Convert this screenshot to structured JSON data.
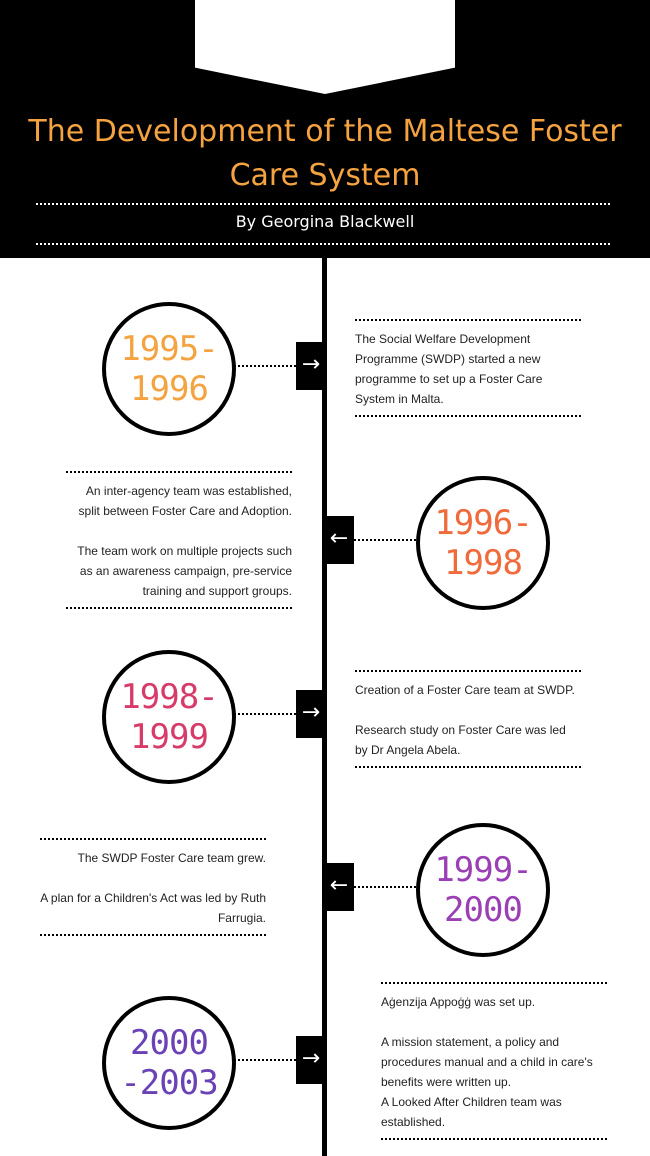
{
  "header": {
    "title": "The Development of the Maltese Foster Care System",
    "byline": "By Georgina Blackwell"
  },
  "colors": {
    "title": "#f4a340",
    "y1995": "#f4a340",
    "y1996": "#f06a3b",
    "y1998": "#d63b69",
    "y1999": "#9b3fb5",
    "y2000": "#6a42b5"
  },
  "icons": {
    "right_arrow": "arrow-right-icon",
    "left_arrow": "arrow-left-icon"
  },
  "timeline": [
    {
      "year": "1995-\n1996",
      "paragraphs": [
        "The Social Welfare Development Programme (SWDP) started a new programme to set up a Foster Care System in Malta."
      ]
    },
    {
      "year": "1996-\n1998",
      "paragraphs": [
        "An inter-agency team was established, split between Foster Care and Adoption.",
        "The team work on multiple projects such as an awareness campaign, pre-service training and support groups."
      ]
    },
    {
      "year": "1998-\n1999",
      "paragraphs": [
        "Creation of a Foster Care team at SWDP.",
        "Research study on Foster Care was led by Dr Angela Abela."
      ]
    },
    {
      "year": "1999-\n2000",
      "paragraphs": [
        "The SWDP Foster Care team grew.",
        "A plan for a Children's Act was led by Ruth Farrugia."
      ]
    },
    {
      "year": "2000\n-2003",
      "paragraphs": [
        "Aġenzija Appoġġ was set up.",
        "A mission statement, a policy and procedures manual and a child in care's benefits were written up.",
        "A Looked After Children team was established."
      ]
    }
  ]
}
